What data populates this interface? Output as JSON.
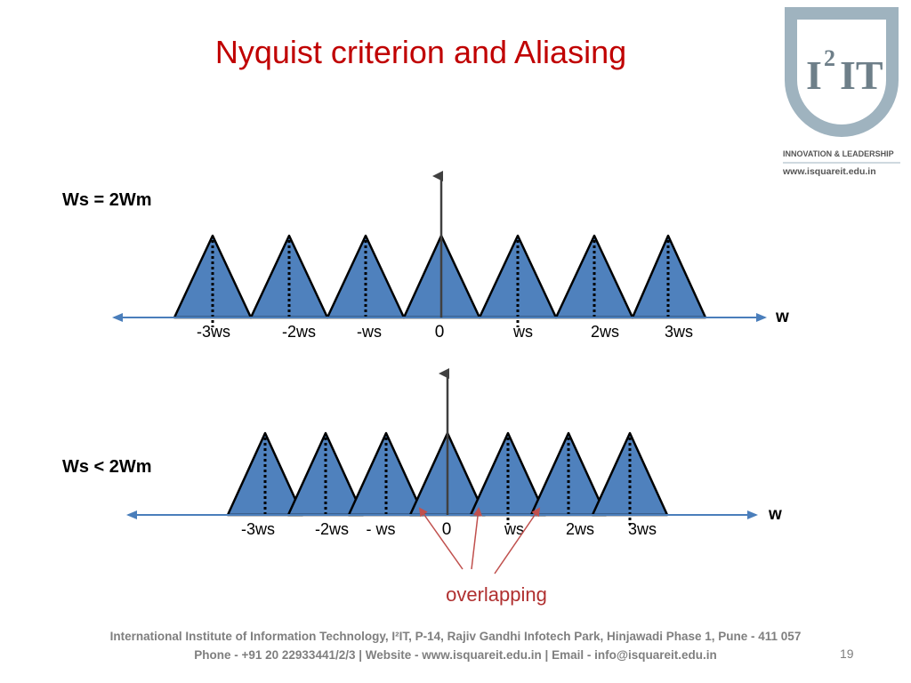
{
  "slide": {
    "title": "Nyquist criterion and Aliasing",
    "page_number": "19"
  },
  "logo": {
    "mark_text_i": "I",
    "mark_text_sup": "2",
    "mark_text_it": "IT",
    "tagline": "INNOVATION & LEADERSHIP",
    "website": "www.isquareit.edu.in"
  },
  "diagram_top": {
    "condition_label": "Ws = 2Wm",
    "axis_label": "w",
    "tick_labels": [
      "-3ws",
      "-2ws",
      "-ws",
      "0",
      "ws",
      "2ws",
      "3ws"
    ]
  },
  "diagram_bottom": {
    "condition_label": "Ws < 2Wm",
    "axis_label": "w",
    "tick_labels": [
      "-3ws",
      "-2ws",
      "- ws",
      "0",
      "ws",
      "2ws",
      "3ws"
    ],
    "annotation": "overlapping"
  },
  "colors": {
    "title": "#c00000",
    "triangle_fill": "#4f81bd",
    "axis": "#4a7ebb",
    "annotation": "#b03030",
    "footer": "#7f7f7f"
  },
  "footer": {
    "line1": "International Institute of Information Technology, I²IT, P-14, Rajiv Gandhi Infotech Park, Hinjawadi Phase 1, Pune - 411 057",
    "line2": "Phone - +91 20 22933441/2/3 | Website - www.isquareit.edu.in | Email - info@isquareit.edu.in"
  }
}
